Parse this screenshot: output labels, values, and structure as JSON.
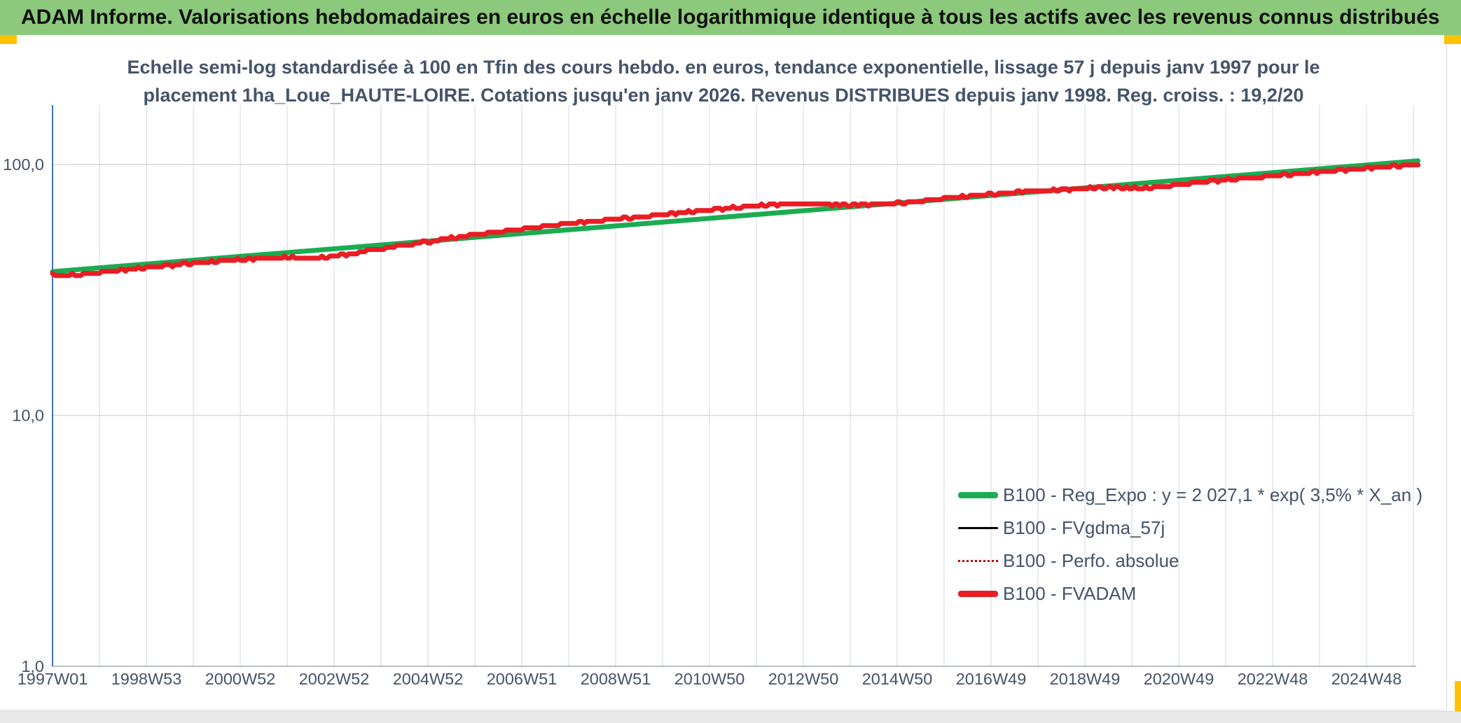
{
  "banner": {
    "title": "ADAM Informe. Valorisations hebdomadaires en euros en échelle logarithmique identique à tous les actifs avec les revenus connus distribués"
  },
  "chart_title": {
    "line1": "Echelle semi-log standardisée à 100 en Tfin des cours hebdo. en euros, tendance exponentielle, lissage 57 j depuis janv 1997 pour le",
    "line2": "placement 1ha_Loue_HAUTE-LOIRE. Cotations jusqu'en janv 2026. Revenus DISTRIBUES depuis janv 1998. Reg. croiss. : 19,2/20"
  },
  "colors": {
    "banner_bg": "#8CC97C",
    "accent_gold": "#FCC203",
    "heading_text": "#44546A",
    "axis_line_blue": "#4472C4",
    "gridline_vertical": "#e2e6ec",
    "gridline_horizontal": "#d9d9d9",
    "x_axis_line": "#bcc0c9",
    "series_green": "#1BAC52",
    "series_black": "#000000",
    "series_dotted_red": "#C00000",
    "series_red": "#EA1C24"
  },
  "chart_data": {
    "type": "line",
    "y_scale": "log10",
    "title": "Echelle semi-log standardisée à 100 en Tfin des cours hebdo. en euros, tendance exponentielle, lissage 57 j depuis janv 1997 pour le placement 1ha_Loue_HAUTE-LOIRE. Cotations jusqu'en janv 2026. Revenus DISTRIBUES depuis janv 1998. Reg. croiss. : 19,2/20",
    "xlabel": "",
    "ylabel": "",
    "xlim_years": [
      1997,
      2026
    ],
    "ylim": [
      1.0,
      170.0
    ],
    "grid": "on",
    "legend_position": "inside-lower-right",
    "y_ticks": [
      {
        "label": "100,0",
        "value": 100
      },
      {
        "label": "10,0",
        "value": 10
      },
      {
        "label": "1,0",
        "value": 1
      }
    ],
    "x_tick_labels": [
      "1997W01",
      "1998W53",
      "2000W52",
      "2002W52",
      "2004W52",
      "2006W51",
      "2008W51",
      "2010W50",
      "2012W50",
      "2014W50",
      "2016W49",
      "2018W49",
      "2020W49",
      "2022W48",
      "2024W48"
    ],
    "fvadam_points": [
      [
        1997.0,
        36.3
      ],
      [
        1997.3,
        36.1
      ],
      [
        1997.6,
        36.4
      ],
      [
        1998.0,
        37.2
      ],
      [
        1998.5,
        38.0
      ],
      [
        1999.0,
        38.8
      ],
      [
        1999.5,
        39.6
      ],
      [
        2000.0,
        40.5
      ],
      [
        2000.5,
        41.0
      ],
      [
        2001.0,
        41.8
      ],
      [
        2001.5,
        42.3
      ],
      [
        2002.0,
        42.6
      ],
      [
        2002.4,
        42.3
      ],
      [
        2002.8,
        42.6
      ],
      [
        2003.2,
        43.6
      ],
      [
        2003.6,
        44.8
      ],
      [
        2004.0,
        46.2
      ],
      [
        2004.5,
        47.7
      ],
      [
        2005.0,
        49.2
      ],
      [
        2005.5,
        50.9
      ],
      [
        2006.0,
        52.5
      ],
      [
        2006.5,
        53.9
      ],
      [
        2007.0,
        55.3
      ],
      [
        2007.5,
        56.7
      ],
      [
        2008.0,
        58.1
      ],
      [
        2008.5,
        59.4
      ],
      [
        2009.0,
        60.6
      ],
      [
        2009.5,
        61.8
      ],
      [
        2010.0,
        63.0
      ],
      [
        2010.5,
        64.5
      ],
      [
        2011.0,
        65.8
      ],
      [
        2011.5,
        67.2
      ],
      [
        2012.0,
        68.5
      ],
      [
        2012.5,
        69.3
      ],
      [
        2013.0,
        69.8
      ],
      [
        2013.5,
        69.3
      ],
      [
        2014.0,
        68.9
      ],
      [
        2014.5,
        69.2
      ],
      [
        2015.0,
        70.1
      ],
      [
        2015.5,
        71.5
      ],
      [
        2016.0,
        73.3
      ],
      [
        2016.5,
        74.6
      ],
      [
        2017.0,
        76.1
      ],
      [
        2017.5,
        77.5
      ],
      [
        2018.0,
        78.4
      ],
      [
        2018.5,
        79.3
      ],
      [
        2019.0,
        80.4
      ],
      [
        2019.5,
        81.0
      ],
      [
        2020.0,
        80.7
      ],
      [
        2020.3,
        80.5
      ],
      [
        2020.7,
        81.6
      ],
      [
        2021.0,
        83.3
      ],
      [
        2021.5,
        85.2
      ],
      [
        2022.0,
        86.9
      ],
      [
        2022.5,
        88.3
      ],
      [
        2023.0,
        90.0
      ],
      [
        2023.5,
        91.6
      ],
      [
        2024.0,
        93.3
      ],
      [
        2024.5,
        95.0
      ],
      [
        2025.0,
        96.7
      ],
      [
        2025.5,
        98.4
      ],
      [
        2026.1,
        100.0
      ]
    ],
    "series": [
      {
        "name": "B100 - Reg_Expo : y = 2 027,1 * exp( 3,5% *  X_an )",
        "color": "#1BAC52",
        "width": 7,
        "style": "solid",
        "points": [
          [
            1997.0,
            37.4
          ],
          [
            2026.1,
            103.4
          ]
        ]
      },
      {
        "name": "B100 - FVgdma_57j",
        "color": "#000000",
        "width": 2.5,
        "style": "solid",
        "points_ref": "fvadam_points",
        "note": "hidden beneath FVADAM line"
      },
      {
        "name": "B100 - Perfo. absolue",
        "color": "#C00000",
        "width": 2,
        "style": "dotted",
        "points_ref": "fvadam_points",
        "note": "hidden beneath FVADAM line"
      },
      {
        "name": "B100 - FVADAM",
        "color": "#EA1C24",
        "width": 7,
        "style": "solid",
        "points_ref": "fvadam_points"
      }
    ]
  }
}
